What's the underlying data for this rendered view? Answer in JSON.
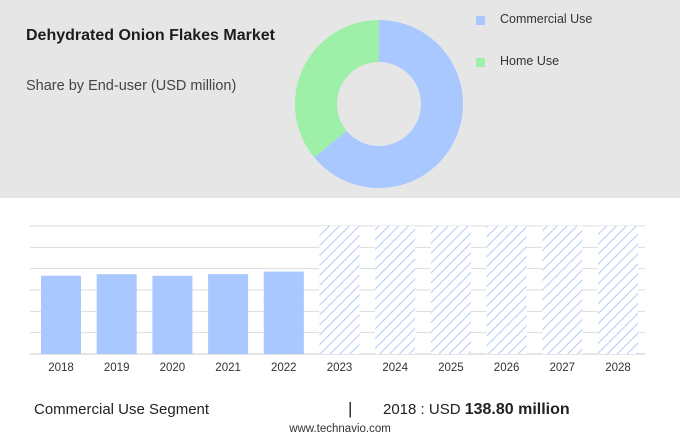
{
  "header": {
    "title": "Dehydrated Onion Flakes Market",
    "subtitle": "Share by End-user (USD million)"
  },
  "legend": [
    {
      "label": "Commercial Use",
      "color": "#a8c8ff"
    },
    {
      "label": "Home Use",
      "color": "#9ef0a8"
    }
  ],
  "chart_data": [
    {
      "type": "pie",
      "variant": "donut",
      "categories": [
        "Commercial Use",
        "Home Use"
      ],
      "values": [
        64,
        36
      ],
      "colors": [
        "#a8c8ff",
        "#9ef0a8"
      ]
    },
    {
      "type": "bar",
      "categories": [
        "2018",
        "2019",
        "2020",
        "2021",
        "2022",
        "2023",
        "2024",
        "2025",
        "2026",
        "2027",
        "2028"
      ],
      "series": [
        {
          "name": "Commercial Use",
          "values": [
            138.8,
            141.5,
            138.6,
            141.6,
            146.2,
            null,
            null,
            null,
            null,
            null,
            null
          ]
        }
      ],
      "forecast_categories": [
        "2023",
        "2024",
        "2025",
        "2026",
        "2027",
        "2028"
      ],
      "ylim": [
        0,
        227
      ],
      "grid": true,
      "bar_color": "#a8c8ff"
    }
  ],
  "footer": {
    "segment": "Commercial Use Segment",
    "divider": "|",
    "value_prefix": "2018 : USD",
    "value": "138.80 million",
    "source": "www.technavio.com"
  }
}
